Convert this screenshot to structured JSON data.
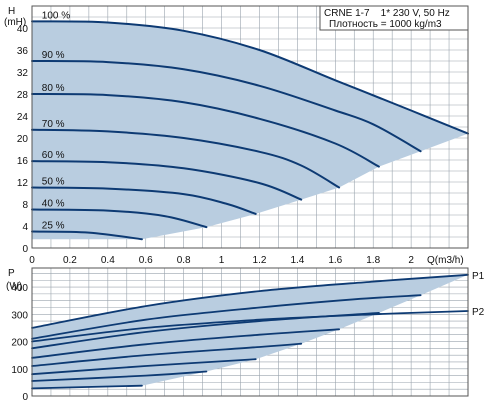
{
  "chart_data": [
    {
      "type": "line",
      "panel": "head",
      "title": "CRNE 1-7    1* 230 V, 50 Hz",
      "subtitle": "Плотность = 1000 kg/m3",
      "ylabel": "H",
      "yunit": "(mH)",
      "xlabel": "Q(m3/h)",
      "xlim": [
        0,
        2.3
      ],
      "ylim": [
        0,
        44
      ],
      "xticks": [
        "0",
        "0.2",
        "0.4",
        "0.6",
        "0.8",
        "1",
        "1.2",
        "1.4",
        "1.6",
        "1.8",
        "2"
      ],
      "yticks": [
        "0",
        "4",
        "8",
        "12",
        "16",
        "20",
        "24",
        "28",
        "32",
        "36",
        "40"
      ],
      "grid": true,
      "series": [
        {
          "name": "100 %",
          "x": [
            0,
            0.4,
            0.8,
            1.2,
            1.6,
            2.0,
            2.3
          ],
          "y": [
            41.2,
            41.0,
            39.5,
            36.0,
            30.5,
            25.0,
            20.8
          ]
        },
        {
          "name": "90 %",
          "x": [
            0,
            0.4,
            0.8,
            1.2,
            1.6,
            1.8,
            2.05
          ],
          "y": [
            34.0,
            33.8,
            32.5,
            29.5,
            25.0,
            22.5,
            17.6
          ]
        },
        {
          "name": "80 %",
          "x": [
            0,
            0.4,
            0.8,
            1.2,
            1.6,
            1.83
          ],
          "y": [
            28.0,
            27.8,
            26.5,
            23.5,
            19.0,
            14.8
          ]
        },
        {
          "name": "70 %",
          "x": [
            0,
            0.4,
            0.8,
            1.2,
            1.42,
            1.62
          ],
          "y": [
            21.5,
            21.2,
            20.0,
            17.5,
            15.0,
            11.0
          ]
        },
        {
          "name": "60 %",
          "x": [
            0,
            0.4,
            0.8,
            1.2,
            1.42
          ],
          "y": [
            15.8,
            15.6,
            14.5,
            11.8,
            8.8
          ]
        },
        {
          "name": "50 %",
          "x": [
            0,
            0.4,
            0.8,
            1.03,
            1.18
          ],
          "y": [
            11.0,
            10.8,
            9.8,
            8.0,
            6.2
          ]
        },
        {
          "name": "40 %",
          "x": [
            0,
            0.4,
            0.7,
            0.92
          ],
          "y": [
            7.0,
            6.8,
            5.8,
            3.8
          ]
        },
        {
          "name": "25 %",
          "x": [
            0,
            0.3,
            0.58
          ],
          "y": [
            3.0,
            2.8,
            1.6
          ]
        }
      ],
      "operating_area": {
        "x": [
          0,
          0.4,
          0.8,
          1.2,
          1.6,
          2.0,
          2.3,
          2.05,
          1.83,
          1.62,
          1.42,
          1.18,
          0.92,
          0.58,
          0
        ],
        "y": [
          41.2,
          41.0,
          39.5,
          36.0,
          30.5,
          25.0,
          20.8,
          17.6,
          14.8,
          11.0,
          8.8,
          6.2,
          3.8,
          1.6,
          1.6
        ]
      }
    },
    {
      "type": "line",
      "panel": "power",
      "ylabel": "P",
      "yunit": "(W)",
      "xlim": [
        0,
        2.3
      ],
      "ylim": [
        0,
        470
      ],
      "yticks": [
        "0",
        "100",
        "200",
        "300",
        "400"
      ],
      "grid": true,
      "series": [
        {
          "name": "P1",
          "x": [
            0,
            0.6,
            1.2,
            1.8,
            2.3
          ],
          "y": [
            250,
            330,
            385,
            420,
            445
          ]
        },
        {
          "name": "",
          "x": [
            0,
            0.6,
            1.2,
            1.7,
            2.05
          ],
          "y": [
            210,
            280,
            325,
            355,
            370
          ]
        },
        {
          "name": "",
          "x": [
            0,
            0.6,
            1.2,
            1.83
          ],
          "y": [
            175,
            235,
            275,
            305
          ]
        },
        {
          "name": "",
          "x": [
            0,
            0.6,
            1.2,
            1.62
          ],
          "y": [
            140,
            190,
            225,
            245
          ]
        },
        {
          "name": "",
          "x": [
            0,
            0.6,
            1.2,
            1.42
          ],
          "y": [
            110,
            150,
            180,
            192
          ]
        },
        {
          "name": "",
          "x": [
            0,
            0.6,
            1.18
          ],
          "y": [
            80,
            110,
            135
          ]
        },
        {
          "name": "",
          "x": [
            0,
            0.6,
            0.92
          ],
          "y": [
            55,
            75,
            90
          ]
        },
        {
          "name": "",
          "x": [
            0,
            0.58
          ],
          "y": [
            28,
            38
          ]
        },
        {
          "name": "P2",
          "x": [
            0,
            0.6,
            1.2,
            1.8,
            2.3
          ],
          "y": [
            200,
            250,
            280,
            300,
            312
          ]
        }
      ],
      "operating_area": {
        "x": [
          0,
          0.6,
          1.2,
          1.8,
          2.3,
          2.05,
          1.83,
          1.62,
          1.42,
          1.18,
          0.92,
          0.58,
          0
        ],
        "y": [
          250,
          330,
          385,
          420,
          445,
          370,
          305,
          245,
          192,
          135,
          90,
          38,
          28
        ]
      }
    }
  ],
  "colors": {
    "curve": "#0d3a73",
    "area": "#b9cde0",
    "grid": "#9aa3ad",
    "frame": "#555555",
    "background": "#ffffff"
  }
}
